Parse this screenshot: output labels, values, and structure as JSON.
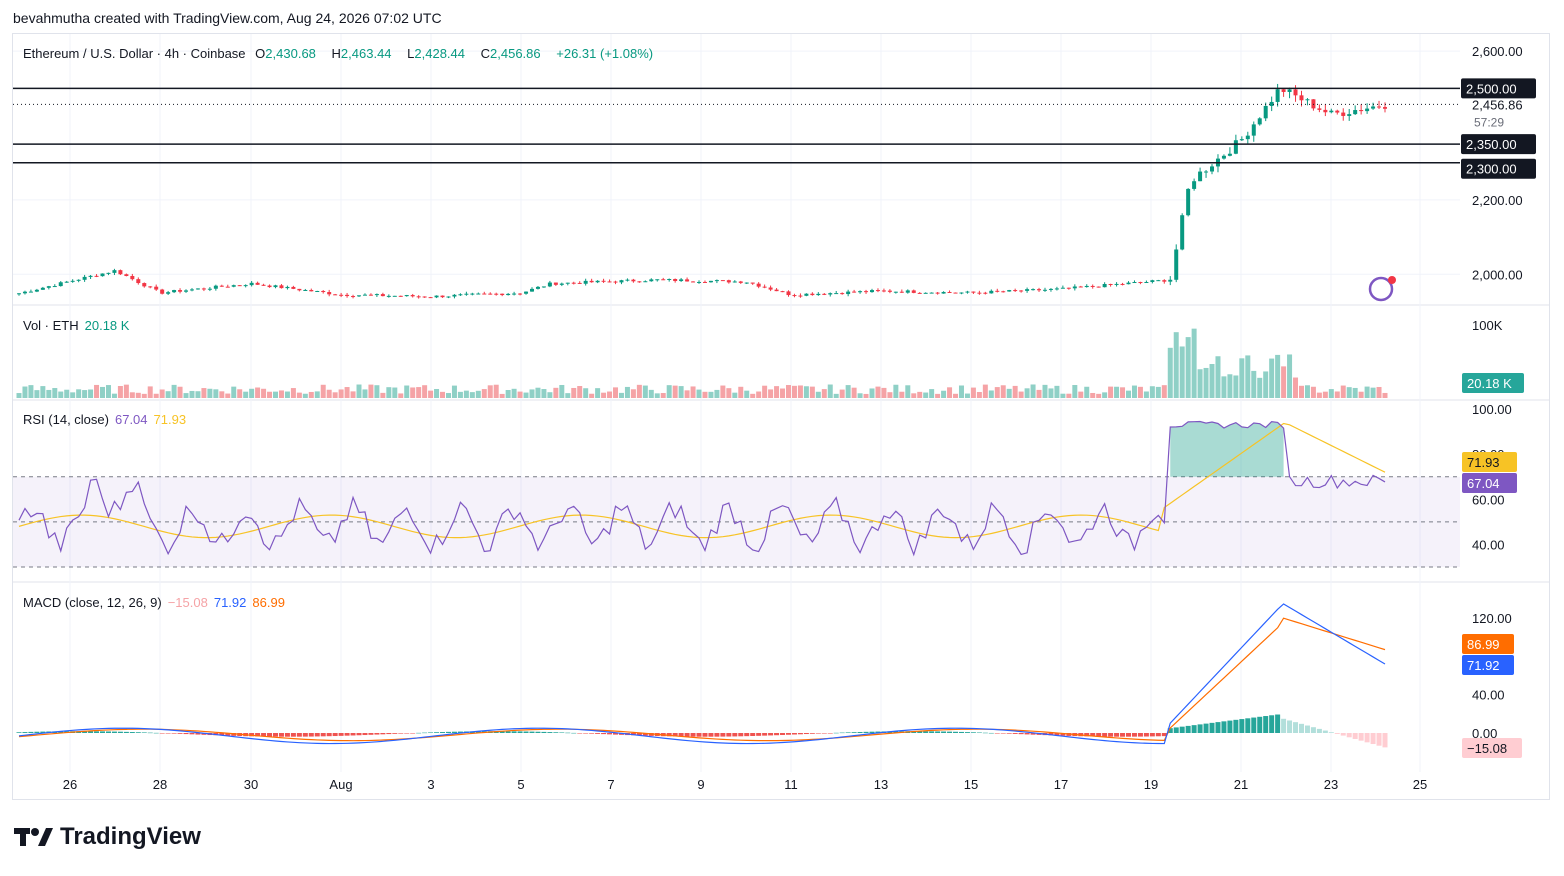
{
  "header_text": "bevahmutha created with TradingView.com, Aug 24, 2026 07:02 UTC",
  "brand": "TradingView",
  "colors": {
    "up": "#089981",
    "down": "#f23645",
    "rsi": "#7e57c2",
    "rsi_ma": "#f7c325",
    "macd": "#2962ff",
    "signal": "#ff6d00",
    "vol_up": "#8fd0c6",
    "vol_down": "#f5a3a6"
  },
  "legend": {
    "symbol": "Ethereum / U.S. Dollar · 4h · Coinbase",
    "o_k": "O",
    "o": "2,430.68",
    "h_k": "H",
    "h": "2,463.44",
    "l_k": "L",
    "l": "2,428.44",
    "c_k": "C",
    "c": "2,456.86",
    "chg": "+26.31 (+1.08%)",
    "vol_name": "Vol · ETH",
    "vol_val": "20.18 K",
    "rsi_name": "RSI (14, close)",
    "rsi_val": "67.04",
    "rsi_ma": "71.93",
    "macd_name": "MACD (close, 12, 26, 9)",
    "macd_hist": "−15.08",
    "macd_val": "71.92",
    "macd_signal": "86.99"
  },
  "price_axis": [
    "2,600.00",
    "2,200.00",
    "2,000.00"
  ],
  "level_tags": [
    "2,500.00",
    "2,350.00",
    "2,300.00"
  ],
  "last_price_tag": "2,456.86",
  "countdown": "57:29",
  "vol_axis": [
    "100K"
  ],
  "vol_tag": "20.18 K",
  "rsi_axis": [
    "100.00",
    "80.00",
    "60.00",
    "40.00"
  ],
  "rsi_tags": [
    "71.93",
    "67.04"
  ],
  "macd_axis": [
    "120.00",
    "40.00",
    "0.00"
  ],
  "macd_tags": [
    "86.99",
    "71.92",
    "−15.08"
  ],
  "x_labels": [
    "26",
    "28",
    "30",
    "Aug",
    "3",
    "5",
    "7",
    "9",
    "11",
    "13",
    "15",
    "17",
    "19",
    "21",
    "23",
    "25"
  ],
  "chart_data": {
    "type": "candlestick",
    "title": "Ethereum / U.S. Dollar · 4h · Coinbase",
    "horizontal_levels": [
      2500,
      2350,
      2300
    ],
    "last_price": 2456.86,
    "ylim_price": [
      1920,
      2630
    ],
    "price_anchor_closes": [
      {
        "x": "Jul 25",
        "close": 1945
      },
      {
        "x": "Jul 27",
        "close": 2010
      },
      {
        "x": "Jul 28",
        "close": 1950
      },
      {
        "x": "Jul 30",
        "close": 1975
      },
      {
        "x": "Aug 1",
        "close": 1945
      },
      {
        "x": "Aug 3",
        "close": 1940
      },
      {
        "x": "Aug 5",
        "close": 1950
      },
      {
        "x": "Aug 6",
        "close": 1975
      },
      {
        "x": "Aug 8",
        "close": 1985
      },
      {
        "x": "Aug 10",
        "close": 1980
      },
      {
        "x": "Aug 11",
        "close": 1945
      },
      {
        "x": "Aug 13",
        "close": 1955
      },
      {
        "x": "Aug 15",
        "close": 1950
      },
      {
        "x": "Aug 17",
        "close": 1960
      },
      {
        "x": "Aug 19",
        "close": 1985
      },
      {
        "x": "Aug 20",
        "close": 2250
      },
      {
        "x": "Aug 21",
        "close": 2360
      },
      {
        "x": "Aug 22",
        "close": 2500
      },
      {
        "x": "Aug 23",
        "close": 2430
      },
      {
        "x": "Aug 24",
        "close": 2456.86
      }
    ],
    "rsi": {
      "value": 67.04,
      "ma": 71.93,
      "bands": [
        70,
        50,
        30
      ],
      "ylim": [
        30,
        100
      ]
    },
    "macd": {
      "macd": 71.92,
      "signal": 86.99,
      "histogram": -15.08,
      "ylim": [
        -30,
        140
      ]
    },
    "volume_last": "20.18 K"
  }
}
